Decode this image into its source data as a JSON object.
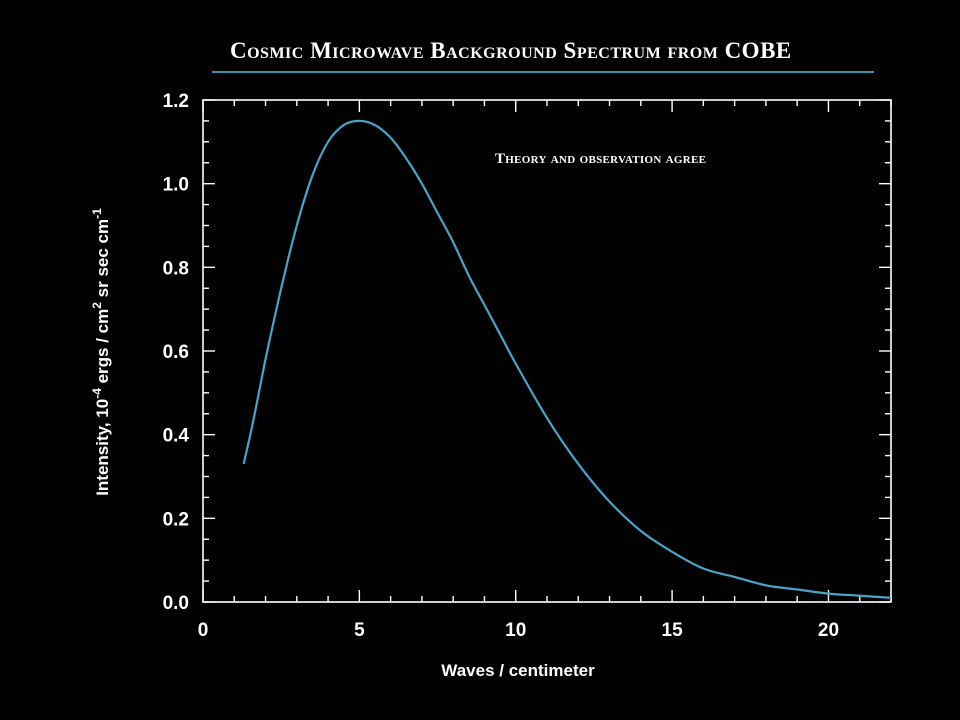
{
  "title": "Cosmic Microwave Background Spectrum from COBE",
  "chart_data": {
    "type": "line",
    "title": "Cosmic Microwave Background Spectrum from COBE",
    "annotation": "Theory and observation agree",
    "xlabel": "Waves / centimeter",
    "ylabel": {
      "prefix": "Intensity, 10",
      "sup1": "-4",
      "middle": " ergs / cm",
      "sup2": "2",
      "suffix": " sr sec cm",
      "sup3": "-1"
    },
    "xlim": [
      0,
      22
    ],
    "ylim": [
      0,
      1.2
    ],
    "xticks": [
      0,
      5,
      10,
      15,
      20
    ],
    "xtick_labels": [
      "0",
      "5",
      "10",
      "15",
      "20"
    ],
    "yticks": [
      0,
      0.2,
      0.4,
      0.6,
      0.8,
      1.0,
      1.2
    ],
    "ytick_labels": [
      "0.0",
      "0.2",
      "0.4",
      "0.6",
      "0.8",
      "1.0",
      "1.2"
    ],
    "grid": false,
    "line_color": "#4aa3c8",
    "series": [
      {
        "x": [
          1.3,
          1.6,
          2,
          2.5,
          3,
          3.5,
          4,
          4.5,
          5,
          5.5,
          6,
          6.5,
          7,
          7.5,
          8,
          8.5,
          9,
          9.5,
          10,
          11,
          12,
          13,
          14,
          15,
          16,
          17,
          18,
          19,
          20,
          21,
          22
        ],
        "y": [
          0.33,
          0.43,
          0.58,
          0.75,
          0.9,
          1.02,
          1.1,
          1.14,
          1.15,
          1.14,
          1.11,
          1.06,
          1.0,
          0.93,
          0.86,
          0.78,
          0.71,
          0.64,
          0.57,
          0.44,
          0.33,
          0.24,
          0.17,
          0.12,
          0.08,
          0.06,
          0.04,
          0.03,
          0.02,
          0.015,
          0.01
        ]
      }
    ]
  }
}
